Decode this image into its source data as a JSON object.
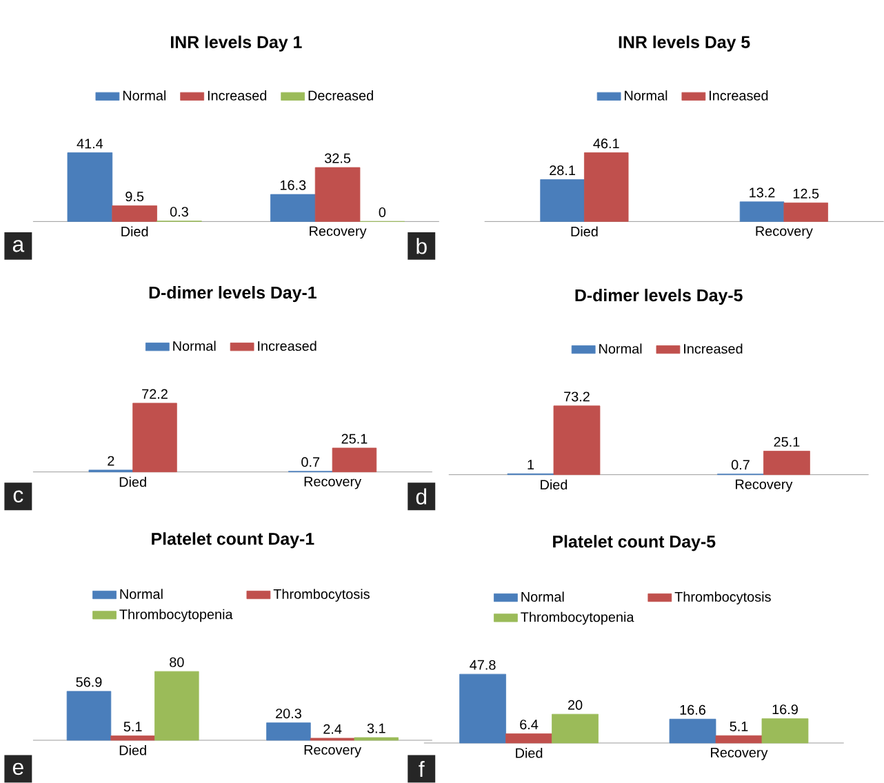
{
  "chart_data": [
    {
      "type": "bar",
      "title": "INR levels Day 1",
      "categories": [
        "Died",
        "Recovery"
      ],
      "legend": "top",
      "data_labels": true,
      "annotations": [
        "a"
      ],
      "series": [
        {
          "name": "Normal",
          "color": "#4a7ebb",
          "values": [
            41.4,
            16.3
          ]
        },
        {
          "name": "Increased",
          "color": "#c0504d",
          "values": [
            9.5,
            32.5
          ]
        },
        {
          "name": "Decreased",
          "color": "#9bbb59",
          "values": [
            0.3,
            0
          ]
        }
      ]
    },
    {
      "type": "bar",
      "title": "INR levels Day 5",
      "categories": [
        "Died",
        "Recovery"
      ],
      "legend": "top",
      "data_labels": true,
      "annotations": [
        "b"
      ],
      "series": [
        {
          "name": "Normal",
          "color": "#4a7ebb",
          "values": [
            28.1,
            13.2
          ]
        },
        {
          "name": "Increased",
          "color": "#c0504d",
          "values": [
            46.1,
            12.5
          ]
        }
      ]
    },
    {
      "type": "bar",
      "title": "D-dimer levels Day-1",
      "categories": [
        "Died",
        "Recovery"
      ],
      "legend": "top",
      "data_labels": true,
      "annotations": [
        "c"
      ],
      "series": [
        {
          "name": "Normal",
          "color": "#4a7ebb",
          "values": [
            2,
            0.7
          ]
        },
        {
          "name": "Increased",
          "color": "#c0504d",
          "values": [
            72.2,
            25.1
          ]
        }
      ]
    },
    {
      "type": "bar",
      "title": "D-dimer levels Day-5",
      "categories": [
        "Died",
        "Recovery"
      ],
      "legend": "top",
      "data_labels": true,
      "annotations": [
        "d"
      ],
      "series": [
        {
          "name": "Normal",
          "color": "#4a7ebb",
          "values": [
            1,
            0.7
          ]
        },
        {
          "name": "Increased",
          "color": "#c0504d",
          "values": [
            73.2,
            25.1
          ]
        }
      ]
    },
    {
      "type": "bar",
      "title": "Platelet count Day-1",
      "categories": [
        "Died",
        "Recovery"
      ],
      "legend": "top",
      "data_labels": true,
      "annotations": [
        "e"
      ],
      "series": [
        {
          "name": "Normal",
          "color": "#4a7ebb",
          "values": [
            56.9,
            20.3
          ]
        },
        {
          "name": "Thrombocytosis",
          "color": "#c0504d",
          "values": [
            5.1,
            2.4
          ]
        },
        {
          "name": "Thrombocytopenia",
          "color": "#9bbb59",
          "values": [
            80,
            3.1
          ]
        }
      ]
    },
    {
      "type": "bar",
      "title": "Platelet  count Day-5",
      "categories": [
        "Died",
        "Recovery"
      ],
      "legend": "top",
      "data_labels": true,
      "annotations": [
        "f"
      ],
      "series": [
        {
          "name": "Normal",
          "color": "#4a7ebb",
          "values": [
            47.8,
            16.6
          ]
        },
        {
          "name": "Thrombocytosis",
          "color": "#c0504d",
          "values": [
            6.4,
            5.1
          ]
        },
        {
          "name": "Thrombocytopenia",
          "color": "#9bbb59",
          "values": [
            20,
            16.9
          ]
        }
      ]
    }
  ]
}
